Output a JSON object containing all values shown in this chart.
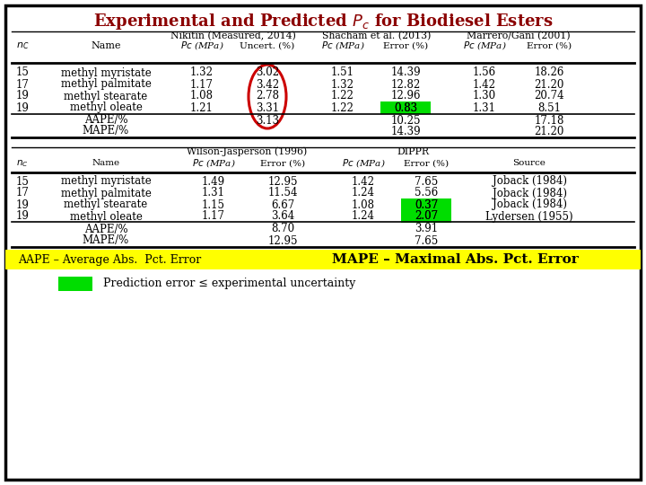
{
  "bg_color": "#ffffff",
  "border_color": "#000000",
  "title_color": "#8B0000",
  "yellow_bg": "#ffff00",
  "green_color": "#00dd00",
  "red_ellipse_color": "#cc0000",
  "top_table": {
    "rows": [
      [
        "15",
        "methyl myristate",
        "1.32",
        "3.02",
        "1.51",
        "14.39",
        "1.56",
        "18.26"
      ],
      [
        "17",
        "methyl palmitate",
        "1.17",
        "3.42",
        "1.32",
        "12.82",
        "1.42",
        "21.20"
      ],
      [
        "19",
        "methyl stearate",
        "1.08",
        "2.78",
        "1.22",
        "12.96",
        "1.30",
        "20.74"
      ],
      [
        "19",
        "methyl oleate",
        "1.21",
        "3.31",
        "1.22",
        "0.83",
        "1.31",
        "8.51"
      ]
    ],
    "aape_row": [
      "",
      "AAPE/%",
      "",
      "3.13",
      "",
      "10.25",
      "",
      "17.18"
    ],
    "mape_row": [
      "",
      "MAPE/%",
      "",
      "",
      "",
      "14.39",
      "",
      "21.20"
    ]
  },
  "bot_table": {
    "rows": [
      [
        "15",
        "methyl myristate",
        "1.49",
        "12.95",
        "1.42",
        "7.65",
        "Joback (1984)"
      ],
      [
        "17",
        "methyl palmitate",
        "1.31",
        "11.54",
        "1.24",
        "5.56",
        "Joback (1984)"
      ],
      [
        "19",
        "methyl stearate",
        "1.15",
        "6.67",
        "1.08",
        "0.37",
        "Joback (1984)"
      ],
      [
        "19",
        "methyl oleate",
        "1.17",
        "3.64",
        "1.24",
        "2.07",
        "Lydersen (1955)"
      ]
    ],
    "aape_row": [
      "",
      "AAPE/%",
      "",
      "8.70",
      "",
      "3.91",
      ""
    ],
    "mape_row": [
      "",
      "MAPE/%",
      "",
      "12.95",
      "",
      "7.65",
      ""
    ]
  }
}
